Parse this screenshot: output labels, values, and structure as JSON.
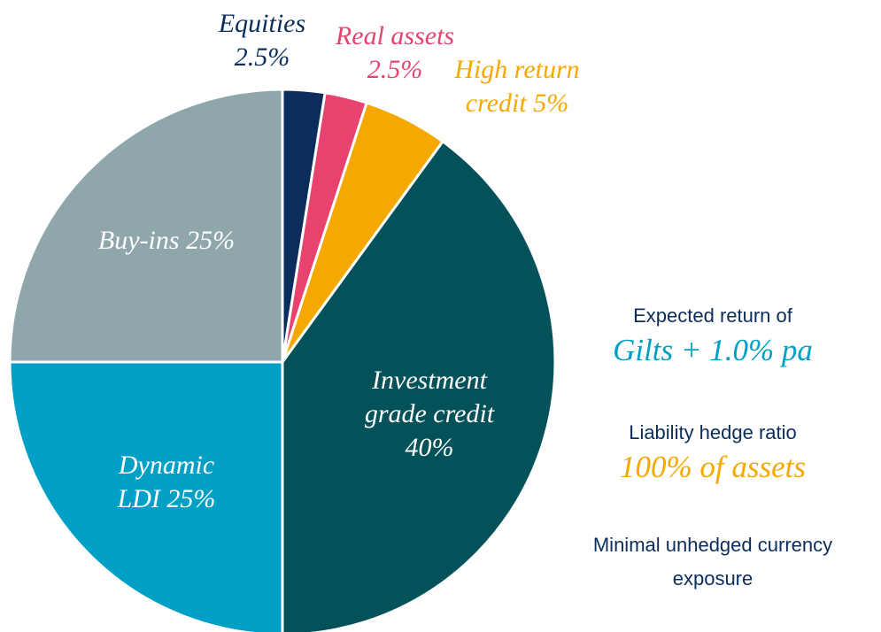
{
  "chart_data": {
    "type": "pie",
    "categories": [
      "Equities",
      "Real assets",
      "High return credit",
      "Investment grade credit",
      "Dynamic LDI",
      "Buy-ins"
    ],
    "values": [
      2.5,
      2.5,
      5,
      40,
      25,
      25
    ],
    "value_labels": [
      "2.5%",
      "2.5%",
      "5%",
      "40%",
      "25%",
      "25%"
    ],
    "colors": [
      "#0b2d5b",
      "#e8426f",
      "#f5a800",
      "#03525a",
      "#00a0c6",
      "#8fa6aa"
    ],
    "annotations": [
      {
        "text": "Expected return of",
        "highlight": "Gilts + 1.0% pa"
      },
      {
        "text": "Liability hedge ratio",
        "highlight": "100% of assets"
      },
      {
        "text": "Minimal unhedged currency exposure"
      }
    ]
  }
}
